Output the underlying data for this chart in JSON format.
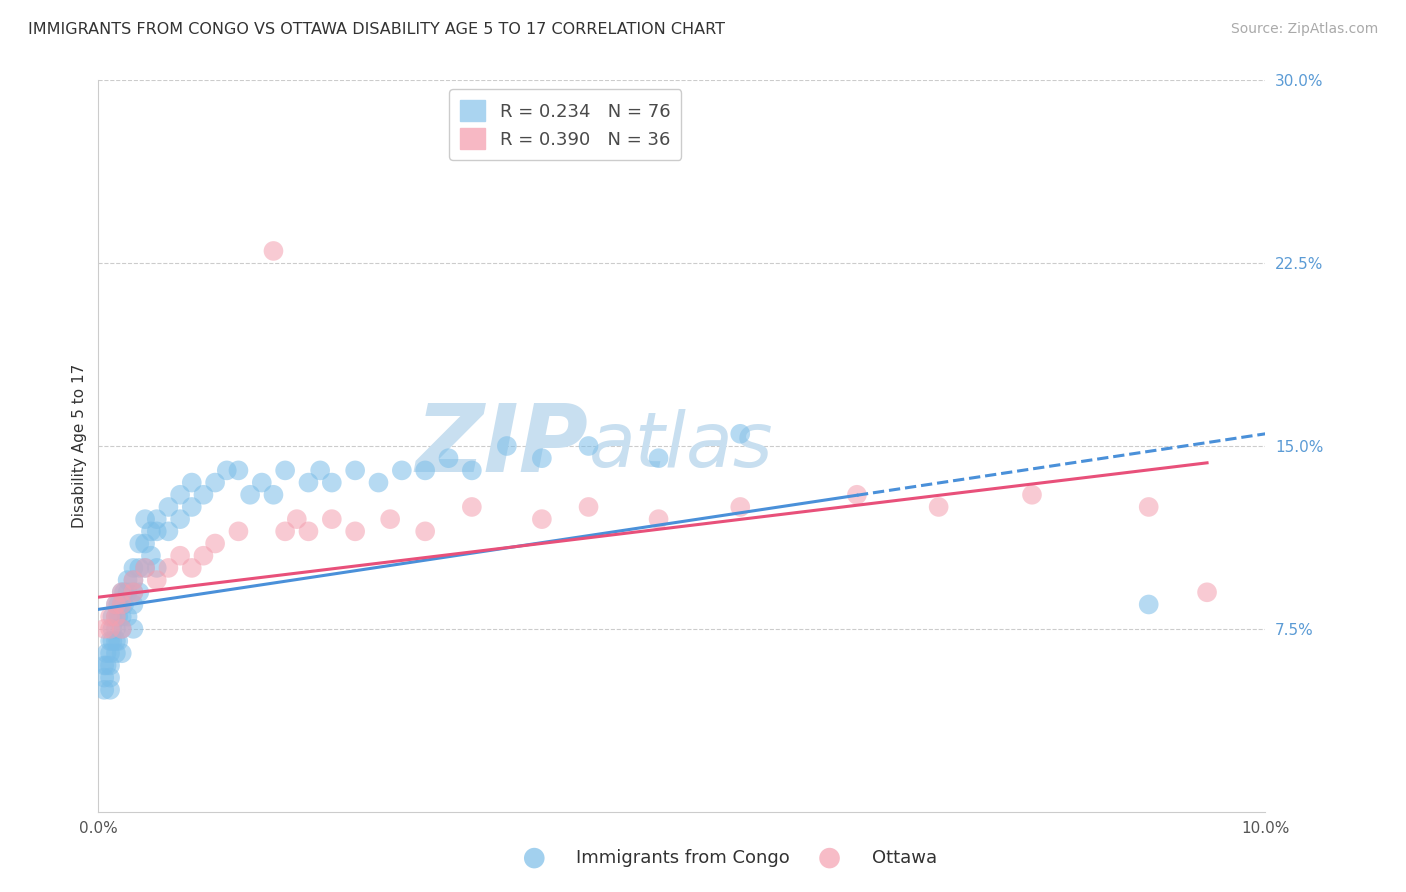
{
  "title": "IMMIGRANTS FROM CONGO VS OTTAWA DISABILITY AGE 5 TO 17 CORRELATION CHART",
  "source": "Source: ZipAtlas.com",
  "ylabel": "Disability Age 5 to 17",
  "series1_label": "Immigrants from Congo",
  "series2_label": "Ottawa",
  "series1_R": 0.234,
  "series1_N": 76,
  "series2_R": 0.39,
  "series2_N": 36,
  "series1_color": "#7bbde8",
  "series2_color": "#f4a0b0",
  "trend1_color": "#4a90d9",
  "trend2_color": "#e8507a",
  "background_color": "#ffffff",
  "grid_color": "#cccccc",
  "xlim": [
    0.0,
    0.1
  ],
  "ylim": [
    0.0,
    0.3
  ],
  "yticks": [
    0.075,
    0.15,
    0.225,
    0.3
  ],
  "ytick_labels": [
    "7.5%",
    "15.0%",
    "22.5%",
    "30.0%"
  ],
  "xticks": [
    0.0,
    0.025,
    0.05,
    0.075,
    0.1
  ],
  "xtick_labels": [
    "0.0%",
    "",
    "",
    "",
    "10.0%"
  ],
  "series1_x": [
    0.0005,
    0.0005,
    0.0005,
    0.0007,
    0.0007,
    0.001,
    0.001,
    0.001,
    0.001,
    0.001,
    0.0012,
    0.0012,
    0.0012,
    0.0015,
    0.0015,
    0.0015,
    0.0015,
    0.0015,
    0.0017,
    0.0017,
    0.0017,
    0.002,
    0.002,
    0.002,
    0.002,
    0.002,
    0.0022,
    0.0022,
    0.0025,
    0.0025,
    0.0025,
    0.003,
    0.003,
    0.003,
    0.003,
    0.003,
    0.0035,
    0.0035,
    0.0035,
    0.004,
    0.004,
    0.004,
    0.0045,
    0.0045,
    0.005,
    0.005,
    0.005,
    0.006,
    0.006,
    0.007,
    0.007,
    0.008,
    0.008,
    0.009,
    0.01,
    0.011,
    0.012,
    0.013,
    0.014,
    0.015,
    0.016,
    0.018,
    0.019,
    0.02,
    0.022,
    0.024,
    0.026,
    0.028,
    0.03,
    0.032,
    0.035,
    0.038,
    0.042,
    0.048,
    0.055,
    0.09
  ],
  "series1_y": [
    0.06,
    0.055,
    0.05,
    0.065,
    0.06,
    0.07,
    0.065,
    0.06,
    0.055,
    0.05,
    0.08,
    0.075,
    0.07,
    0.085,
    0.08,
    0.075,
    0.07,
    0.065,
    0.085,
    0.08,
    0.07,
    0.09,
    0.085,
    0.08,
    0.075,
    0.065,
    0.09,
    0.085,
    0.095,
    0.09,
    0.08,
    0.1,
    0.095,
    0.09,
    0.085,
    0.075,
    0.11,
    0.1,
    0.09,
    0.12,
    0.11,
    0.1,
    0.115,
    0.105,
    0.12,
    0.115,
    0.1,
    0.125,
    0.115,
    0.13,
    0.12,
    0.135,
    0.125,
    0.13,
    0.135,
    0.14,
    0.14,
    0.13,
    0.135,
    0.13,
    0.14,
    0.135,
    0.14,
    0.135,
    0.14,
    0.135,
    0.14,
    0.14,
    0.145,
    0.14,
    0.15,
    0.145,
    0.15,
    0.145,
    0.155,
    0.085
  ],
  "series2_x": [
    0.0005,
    0.001,
    0.001,
    0.0015,
    0.0015,
    0.002,
    0.002,
    0.002,
    0.003,
    0.003,
    0.004,
    0.005,
    0.006,
    0.007,
    0.008,
    0.009,
    0.01,
    0.012,
    0.015,
    0.016,
    0.017,
    0.018,
    0.02,
    0.022,
    0.025,
    0.028,
    0.032,
    0.038,
    0.042,
    0.048,
    0.055,
    0.065,
    0.072,
    0.08,
    0.09,
    0.095
  ],
  "series2_y": [
    0.075,
    0.08,
    0.075,
    0.085,
    0.08,
    0.09,
    0.085,
    0.075,
    0.095,
    0.09,
    0.1,
    0.095,
    0.1,
    0.105,
    0.1,
    0.105,
    0.11,
    0.115,
    0.23,
    0.115,
    0.12,
    0.115,
    0.12,
    0.115,
    0.12,
    0.115,
    0.125,
    0.12,
    0.125,
    0.12,
    0.125,
    0.13,
    0.125,
    0.13,
    0.125,
    0.09
  ],
  "trend1_intercept": 0.083,
  "trend1_slope": 0.72,
  "trend2_intercept": 0.088,
  "trend2_slope": 0.58,
  "watermark_zip_color": "#c8dff0",
  "watermark_atlas_color": "#c8dff0",
  "title_fontsize": 11.5,
  "axis_label_fontsize": 11,
  "tick_fontsize": 11,
  "legend_fontsize": 13,
  "source_fontsize": 10
}
